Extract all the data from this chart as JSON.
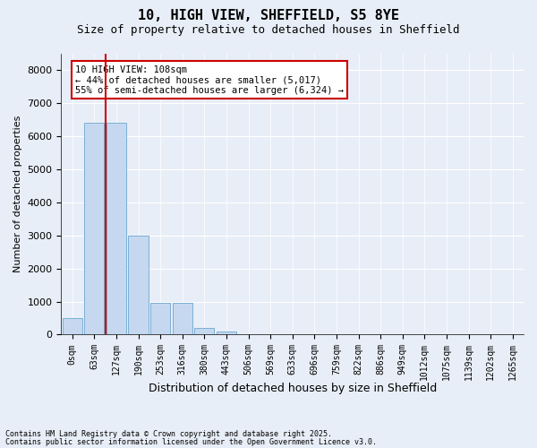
{
  "title_line1": "10, HIGH VIEW, SHEFFIELD, S5 8YE",
  "title_line2": "Size of property relative to detached houses in Sheffield",
  "xlabel": "Distribution of detached houses by size in Sheffield",
  "ylabel": "Number of detached properties",
  "bar_color": "#c5d8f0",
  "bar_edge_color": "#7bafd4",
  "background_color": "#e8eef7",
  "grid_color": "#ffffff",
  "bin_labels": [
    "0sqm",
    "63sqm",
    "127sqm",
    "190sqm",
    "253sqm",
    "316sqm",
    "380sqm",
    "443sqm",
    "506sqm",
    "569sqm",
    "633sqm",
    "696sqm",
    "759sqm",
    "822sqm",
    "886sqm",
    "949sqm",
    "1012sqm",
    "1075sqm",
    "1139sqm",
    "1202sqm",
    "1265sqm"
  ],
  "bar_values": [
    500,
    6400,
    6400,
    3000,
    950,
    950,
    200,
    100,
    20,
    5,
    2,
    1,
    1,
    0,
    0,
    0,
    0,
    0,
    0,
    0,
    0
  ],
  "ylim": [
    0,
    8500
  ],
  "yticks": [
    0,
    1000,
    2000,
    3000,
    4000,
    5000,
    6000,
    7000,
    8000
  ],
  "annotation_title": "10 HIGH VIEW: 108sqm",
  "annotation_line1": "← 44% of detached houses are smaller (5,017)",
  "annotation_line2": "55% of semi-detached houses are larger (6,324) →",
  "vline_color": "#cc0000",
  "annotation_box_edge": "#cc0000",
  "footnote1": "Contains HM Land Registry data © Crown copyright and database right 2025.",
  "footnote2": "Contains public sector information licensed under the Open Government Licence v3.0."
}
